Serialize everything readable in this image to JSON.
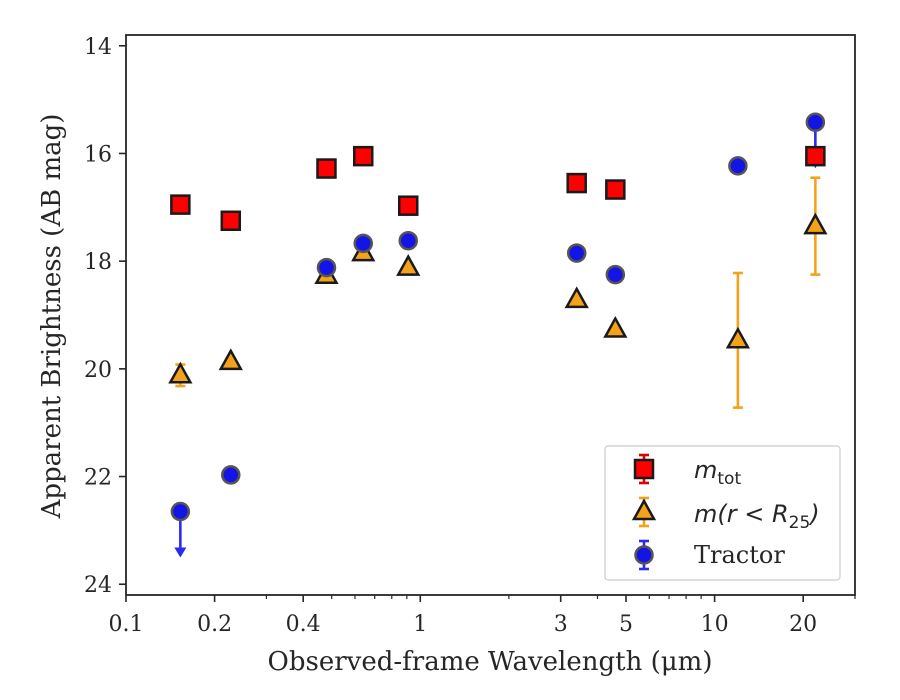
{
  "chart_data": {
    "type": "scatter",
    "xlabel_prefix": "Observed-frame Wavelength (",
    "xlabel_unit": "μm",
    "xlabel_suffix": ")",
    "ylabel": "Apparent Brightness (AB mag)",
    "xscale": "log",
    "xlim": [
      0.1,
      30
    ],
    "ylim": [
      24.2,
      13.8
    ],
    "y_inverted": true,
    "grid": false,
    "legend_position": "bottom-right",
    "xticks": [
      {
        "value": 0.1,
        "label": "0.1"
      },
      {
        "value": 0.2,
        "label": "0.2"
      },
      {
        "value": 0.4,
        "label": "0.4"
      },
      {
        "value": 1,
        "label": "1"
      },
      {
        "value": 3,
        "label": "3"
      },
      {
        "value": 5,
        "label": "5"
      },
      {
        "value": 10,
        "label": "10"
      },
      {
        "value": 20,
        "label": "20"
      }
    ],
    "yticks": [
      {
        "value": 14,
        "label": "14"
      },
      {
        "value": 16,
        "label": "16"
      },
      {
        "value": 18,
        "label": "18"
      },
      {
        "value": 20,
        "label": "20"
      },
      {
        "value": 22,
        "label": "22"
      },
      {
        "value": 24,
        "label": "24"
      }
    ],
    "series": [
      {
        "name": "m_tot",
        "legend_main": "m",
        "legend_sub": "tot",
        "marker": "square",
        "face_color": "#ff0000",
        "edge_color": "#1a1a1a",
        "error_color": "#e00000",
        "points": [
          {
            "x": 0.153,
            "y": 16.95,
            "err": 0.05
          },
          {
            "x": 0.227,
            "y": 17.25,
            "err": 0.05
          },
          {
            "x": 0.48,
            "y": 16.28,
            "err": 0.05
          },
          {
            "x": 0.64,
            "y": 16.05,
            "err": 0.05
          },
          {
            "x": 0.91,
            "y": 16.97,
            "err": 0.05
          },
          {
            "x": 3.4,
            "y": 16.55,
            "err": 0.05
          },
          {
            "x": 4.6,
            "y": 16.67,
            "err": 0.05
          },
          {
            "x": 22.0,
            "y": 16.05,
            "err": 0.05
          }
        ]
      },
      {
        "name": "m(r < R_25)",
        "legend_main": "m(r < R",
        "legend_sub": "25",
        "legend_tail": ")",
        "marker": "triangle",
        "face_color": "#f5a21b",
        "edge_color": "#1a1a1a",
        "error_color": "#f5a21b",
        "points": [
          {
            "x": 0.153,
            "y": 20.12,
            "err": 0.2
          },
          {
            "x": 0.227,
            "y": 19.87,
            "err": 0.05
          },
          {
            "x": 0.48,
            "y": 18.27,
            "err": 0.05
          },
          {
            "x": 0.64,
            "y": 17.85,
            "err": 0.05
          },
          {
            "x": 0.91,
            "y": 18.12,
            "err": 0.05
          },
          {
            "x": 3.4,
            "y": 18.72,
            "err": 0.05
          },
          {
            "x": 4.6,
            "y": 19.27,
            "err": 0.05
          },
          {
            "x": 12.0,
            "y": 19.47,
            "err": 1.25
          },
          {
            "x": 22.0,
            "y": 17.35,
            "err": 0.9
          }
        ]
      },
      {
        "name": "Tractor",
        "marker": "circle",
        "face_color": "#1414e6",
        "edge_color": "#555555",
        "error_color": "#2a2af0",
        "points": [
          {
            "x": 0.153,
            "y": 22.65,
            "upper_limit": true
          },
          {
            "x": 0.227,
            "y": 21.97
          },
          {
            "x": 0.48,
            "y": 18.12
          },
          {
            "x": 0.64,
            "y": 17.67
          },
          {
            "x": 0.91,
            "y": 17.62
          },
          {
            "x": 3.4,
            "y": 17.85
          },
          {
            "x": 4.6,
            "y": 18.25
          },
          {
            "x": 12.0,
            "y": 16.23
          },
          {
            "x": 22.0,
            "y": 15.42,
            "upper_limit": true
          }
        ]
      }
    ]
  }
}
